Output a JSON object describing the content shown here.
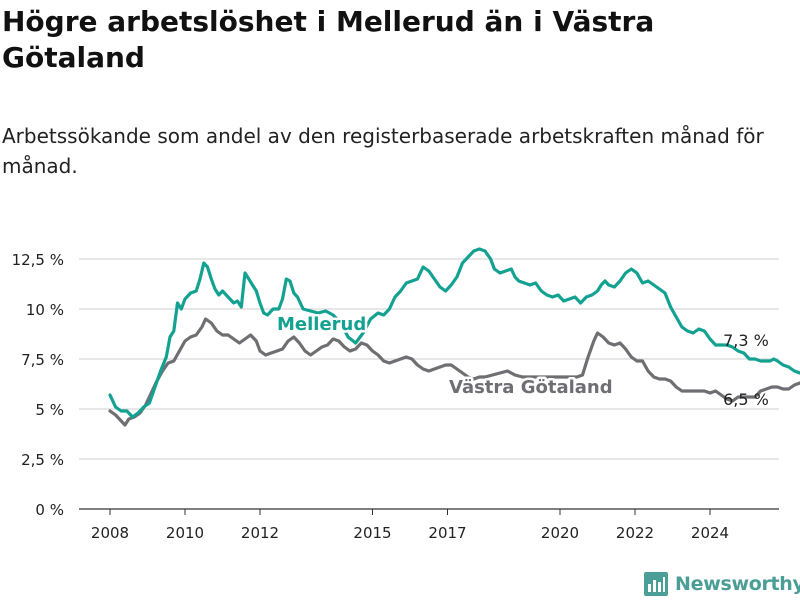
{
  "title": "Högre arbetslöshet i Mellerud än i Västra Götaland",
  "subtitle": "Arbetssökande som andel av den registerbaserade arbetskraften månad för månad.",
  "brand": "Newsworthy",
  "colors": {
    "mellerud": "#13a291",
    "vastra": "#6e6e73",
    "grid": "#cfcfcf",
    "brand": "#4a9e95"
  },
  "chart_data": {
    "type": "line",
    "title": "Högre arbetslöshet i Mellerud än i Västra Götaland",
    "subtitle": "Arbetssökande som andel av den registerbaserade arbetskraften månad för månad.",
    "xlabel": "",
    "ylabel": "",
    "xlim": [
      2008,
      2025.75
    ],
    "ylim": [
      0,
      12.5
    ],
    "grid": true,
    "legend": "inline labels",
    "x_ticks": [
      2008,
      2010,
      2012,
      2015,
      2017,
      2020,
      2022,
      2024
    ],
    "y_ticks": [
      0,
      2.5,
      5,
      7.5,
      10,
      12.5
    ],
    "y_tick_labels": [
      "0 %",
      "2,5 %",
      "5 %",
      "7,5 %",
      "10 %",
      "12,5 %"
    ],
    "series": [
      {
        "name": "Mellerud",
        "color": "#13a291",
        "end_label": "7,3 %",
        "points": [
          [
            2008.0,
            5.7
          ],
          [
            2008.15,
            5.1
          ],
          [
            2008.3,
            4.9
          ],
          [
            2008.45,
            4.9
          ],
          [
            2008.6,
            4.6
          ],
          [
            2008.75,
            4.8
          ],
          [
            2008.9,
            5.1
          ],
          [
            2009.05,
            5.3
          ],
          [
            2009.2,
            6.1
          ],
          [
            2009.35,
            6.9
          ],
          [
            2009.5,
            7.6
          ],
          [
            2009.6,
            8.6
          ],
          [
            2009.7,
            8.9
          ],
          [
            2009.8,
            10.3
          ],
          [
            2009.9,
            10.0
          ],
          [
            2010.0,
            10.5
          ],
          [
            2010.15,
            10.8
          ],
          [
            2010.3,
            10.9
          ],
          [
            2010.4,
            11.5
          ],
          [
            2010.5,
            12.3
          ],
          [
            2010.6,
            12.1
          ],
          [
            2010.7,
            11.5
          ],
          [
            2010.8,
            11.0
          ],
          [
            2010.9,
            10.7
          ],
          [
            2011.0,
            10.9
          ],
          [
            2011.15,
            10.6
          ],
          [
            2011.3,
            10.3
          ],
          [
            2011.4,
            10.4
          ],
          [
            2011.5,
            10.1
          ],
          [
            2011.6,
            11.8
          ],
          [
            2011.7,
            11.5
          ],
          [
            2011.8,
            11.2
          ],
          [
            2011.9,
            10.9
          ],
          [
            2012.0,
            10.3
          ],
          [
            2012.1,
            9.8
          ],
          [
            2012.2,
            9.7
          ],
          [
            2012.35,
            10.0
          ],
          [
            2012.5,
            10.0
          ],
          [
            2012.6,
            10.5
          ],
          [
            2012.7,
            11.5
          ],
          [
            2012.8,
            11.4
          ],
          [
            2012.9,
            10.8
          ],
          [
            2013.0,
            10.6
          ],
          [
            2013.15,
            10.0
          ],
          [
            2013.35,
            9.9
          ],
          [
            2013.55,
            9.8
          ],
          [
            2013.75,
            9.9
          ],
          [
            2013.95,
            9.7
          ],
          [
            2014.15,
            9.3
          ],
          [
            2014.35,
            8.6
          ],
          [
            2014.55,
            8.3
          ],
          [
            2014.75,
            8.8
          ],
          [
            2014.95,
            9.5
          ],
          [
            2015.15,
            9.8
          ],
          [
            2015.3,
            9.7
          ],
          [
            2015.45,
            10.0
          ],
          [
            2015.6,
            10.6
          ],
          [
            2015.75,
            10.9
          ],
          [
            2015.9,
            11.3
          ],
          [
            2016.05,
            11.4
          ],
          [
            2016.2,
            11.5
          ],
          [
            2016.35,
            12.1
          ],
          [
            2016.5,
            11.9
          ],
          [
            2016.65,
            11.5
          ],
          [
            2016.8,
            11.1
          ],
          [
            2016.95,
            10.9
          ],
          [
            2017.1,
            11.2
          ],
          [
            2017.25,
            11.6
          ],
          [
            2017.4,
            12.3
          ],
          [
            2017.55,
            12.6
          ],
          [
            2017.7,
            12.9
          ],
          [
            2017.85,
            13.0
          ],
          [
            2018.0,
            12.9
          ],
          [
            2018.15,
            12.5
          ],
          [
            2018.25,
            12.0
          ],
          [
            2018.4,
            11.8
          ],
          [
            2018.55,
            11.9
          ],
          [
            2018.7,
            12.0
          ],
          [
            2018.8,
            11.6
          ],
          [
            2018.9,
            11.4
          ],
          [
            2019.05,
            11.3
          ],
          [
            2019.2,
            11.2
          ],
          [
            2019.35,
            11.3
          ],
          [
            2019.5,
            10.9
          ],
          [
            2019.65,
            10.7
          ],
          [
            2019.8,
            10.6
          ],
          [
            2019.95,
            10.7
          ],
          [
            2020.1,
            10.4
          ],
          [
            2020.25,
            10.5
          ],
          [
            2020.4,
            10.6
          ],
          [
            2020.55,
            10.3
          ],
          [
            2020.7,
            10.6
          ],
          [
            2020.85,
            10.7
          ],
          [
            2021.0,
            10.9
          ],
          [
            2021.1,
            11.2
          ],
          [
            2021.2,
            11.4
          ],
          [
            2021.3,
            11.2
          ],
          [
            2021.45,
            11.1
          ],
          [
            2021.6,
            11.4
          ],
          [
            2021.75,
            11.8
          ],
          [
            2021.9,
            12.0
          ],
          [
            2022.05,
            11.8
          ],
          [
            2022.2,
            11.3
          ],
          [
            2022.35,
            11.4
          ],
          [
            2022.5,
            11.2
          ],
          [
            2022.65,
            11.0
          ],
          [
            2022.8,
            10.8
          ],
          [
            2022.95,
            10.1
          ],
          [
            2023.1,
            9.6
          ],
          [
            2023.25,
            9.1
          ],
          [
            2023.4,
            8.9
          ],
          [
            2023.55,
            8.8
          ],
          [
            2023.7,
            9.0
          ],
          [
            2023.85,
            8.9
          ],
          [
            2024.0,
            8.5
          ],
          [
            2024.15,
            8.2
          ],
          [
            2024.3,
            8.2
          ],
          [
            2024.45,
            8.2
          ],
          [
            2024.6,
            8.1
          ],
          [
            2024.75,
            7.9
          ],
          [
            2024.9,
            7.8
          ],
          [
            2025.05,
            7.5
          ],
          [
            2025.2,
            7.5
          ],
          [
            2025.35,
            7.4
          ],
          [
            2025.5,
            7.4
          ],
          [
            2025.6,
            7.4
          ],
          [
            2025.7,
            7.5
          ],
          [
            2025.8,
            7.4
          ],
          [
            2025.95,
            7.2
          ],
          [
            2026.1,
            7.1
          ],
          [
            2026.25,
            6.9
          ],
          [
            2026.4,
            6.8
          ],
          [
            2026.55,
            6.7
          ],
          [
            2026.7,
            7.3
          ]
        ]
      },
      {
        "name": "Västra Götaland",
        "color": "#6e6e73",
        "end_label": "6,5 %",
        "points": [
          [
            2008.0,
            4.9
          ],
          [
            2008.15,
            4.7
          ],
          [
            2008.3,
            4.4
          ],
          [
            2008.4,
            4.2
          ],
          [
            2008.5,
            4.5
          ],
          [
            2008.65,
            4.6
          ],
          [
            2008.8,
            4.8
          ],
          [
            2008.95,
            5.2
          ],
          [
            2009.1,
            5.8
          ],
          [
            2009.25,
            6.4
          ],
          [
            2009.4,
            6.9
          ],
          [
            2009.55,
            7.3
          ],
          [
            2009.7,
            7.4
          ],
          [
            2009.85,
            7.9
          ],
          [
            2010.0,
            8.4
          ],
          [
            2010.15,
            8.6
          ],
          [
            2010.3,
            8.7
          ],
          [
            2010.45,
            9.1
          ],
          [
            2010.55,
            9.5
          ],
          [
            2010.7,
            9.3
          ],
          [
            2010.85,
            8.9
          ],
          [
            2011.0,
            8.7
          ],
          [
            2011.15,
            8.7
          ],
          [
            2011.3,
            8.5
          ],
          [
            2011.45,
            8.3
          ],
          [
            2011.6,
            8.5
          ],
          [
            2011.75,
            8.7
          ],
          [
            2011.9,
            8.4
          ],
          [
            2012.0,
            7.9
          ],
          [
            2012.15,
            7.7
          ],
          [
            2012.3,
            7.8
          ],
          [
            2012.45,
            7.9
          ],
          [
            2012.6,
            8.0
          ],
          [
            2012.75,
            8.4
          ],
          [
            2012.9,
            8.6
          ],
          [
            2013.05,
            8.3
          ],
          [
            2013.2,
            7.9
          ],
          [
            2013.35,
            7.7
          ],
          [
            2013.5,
            7.9
          ],
          [
            2013.65,
            8.1
          ],
          [
            2013.8,
            8.2
          ],
          [
            2013.95,
            8.5
          ],
          [
            2014.1,
            8.4
          ],
          [
            2014.25,
            8.1
          ],
          [
            2014.4,
            7.9
          ],
          [
            2014.55,
            8.0
          ],
          [
            2014.7,
            8.3
          ],
          [
            2014.85,
            8.2
          ],
          [
            2015.0,
            7.9
          ],
          [
            2015.15,
            7.7
          ],
          [
            2015.3,
            7.4
          ],
          [
            2015.45,
            7.3
          ],
          [
            2015.6,
            7.4
          ],
          [
            2015.75,
            7.5
          ],
          [
            2015.9,
            7.6
          ],
          [
            2016.05,
            7.5
          ],
          [
            2016.2,
            7.2
          ],
          [
            2016.35,
            7.0
          ],
          [
            2016.5,
            6.9
          ],
          [
            2016.65,
            7.0
          ],
          [
            2016.8,
            7.1
          ],
          [
            2016.95,
            7.2
          ],
          [
            2017.1,
            7.2
          ],
          [
            2017.25,
            7.0
          ],
          [
            2017.4,
            6.8
          ],
          [
            2017.55,
            6.6
          ],
          [
            2017.7,
            6.5
          ],
          [
            2017.85,
            6.6
          ],
          [
            2018.0,
            6.6
          ],
          [
            2018.2,
            6.7
          ],
          [
            2018.4,
            6.8
          ],
          [
            2018.6,
            6.9
          ],
          [
            2018.8,
            6.7
          ],
          [
            2019.0,
            6.6
          ],
          [
            2019.2,
            6.6
          ],
          [
            2019.4,
            6.6
          ],
          [
            2019.6,
            6.6
          ],
          [
            2019.8,
            6.6
          ],
          [
            2020.0,
            6.6
          ],
          [
            2020.15,
            6.6
          ],
          [
            2020.3,
            6.6
          ],
          [
            2020.45,
            6.6
          ],
          [
            2020.6,
            6.7
          ],
          [
            2020.75,
            7.6
          ],
          [
            2020.9,
            8.4
          ],
          [
            2021.0,
            8.8
          ],
          [
            2021.15,
            8.6
          ],
          [
            2021.3,
            8.3
          ],
          [
            2021.45,
            8.2
          ],
          [
            2021.6,
            8.3
          ],
          [
            2021.75,
            8.0
          ],
          [
            2021.9,
            7.6
          ],
          [
            2022.05,
            7.4
          ],
          [
            2022.2,
            7.4
          ],
          [
            2022.35,
            6.9
          ],
          [
            2022.5,
            6.6
          ],
          [
            2022.65,
            6.5
          ],
          [
            2022.8,
            6.5
          ],
          [
            2022.95,
            6.4
          ],
          [
            2023.1,
            6.1
          ],
          [
            2023.25,
            5.9
          ],
          [
            2023.4,
            5.9
          ],
          [
            2023.55,
            5.9
          ],
          [
            2023.7,
            5.9
          ],
          [
            2023.85,
            5.9
          ],
          [
            2024.0,
            5.8
          ],
          [
            2024.15,
            5.9
          ],
          [
            2024.3,
            5.7
          ],
          [
            2024.45,
            5.5
          ],
          [
            2024.6,
            5.4
          ],
          [
            2024.75,
            5.6
          ],
          [
            2024.9,
            5.6
          ],
          [
            2025.05,
            5.6
          ],
          [
            2025.2,
            5.6
          ],
          [
            2025.35,
            5.9
          ],
          [
            2025.5,
            6.0
          ],
          [
            2025.65,
            6.1
          ],
          [
            2025.8,
            6.1
          ],
          [
            2025.95,
            6.0
          ],
          [
            2026.1,
            6.0
          ],
          [
            2026.25,
            6.2
          ],
          [
            2026.4,
            6.3
          ],
          [
            2026.55,
            6.4
          ],
          [
            2026.7,
            6.5
          ]
        ]
      }
    ]
  }
}
